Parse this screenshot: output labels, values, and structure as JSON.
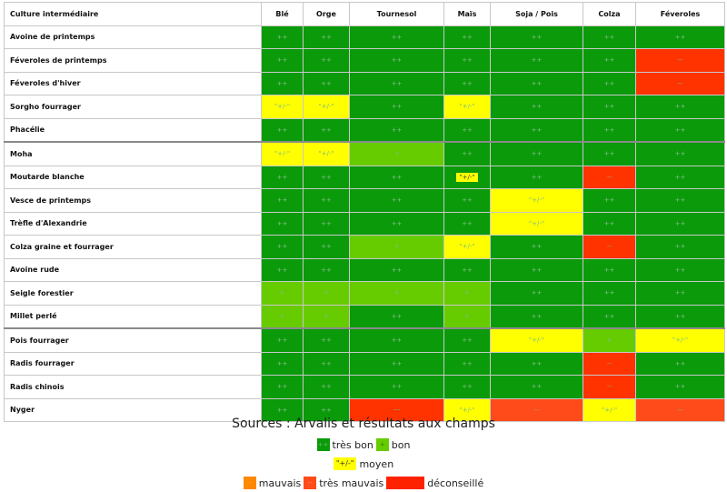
{
  "table": {
    "header_first": "Culture intermédiaire",
    "columns": [
      "Blé",
      "Orge",
      "Tournesol",
      "Maïs",
      "Soja / Pois",
      "Colza",
      "Féveroles"
    ],
    "rows": [
      {
        "crop": "Avoine de printemps",
        "values": [
          "++",
          "++",
          "++",
          "++",
          "++",
          "++",
          "++"
        ],
        "ratings": [
          "tb",
          "tb",
          "tb",
          "tb",
          "tb",
          "tb",
          "tb"
        ]
      },
      {
        "crop": "Féveroles de printemps",
        "values": [
          "++",
          "++",
          "++",
          "++",
          "++",
          "++",
          "--"
        ],
        "ratings": [
          "tb",
          "tb",
          "tb",
          "tb",
          "tb",
          "tb",
          "d"
        ]
      },
      {
        "crop": "Féveroles d'hiver",
        "values": [
          "++",
          "++",
          "++",
          "++",
          "++",
          "++",
          "--"
        ],
        "ratings": [
          "tb",
          "tb",
          "tb",
          "tb",
          "tb",
          "tb",
          "d"
        ]
      },
      {
        "crop": "Sorgho fourrager",
        "values": [
          "\"+/-\"",
          "\"+/-\"",
          "++",
          "\"+/-\"",
          "++",
          "++",
          "++"
        ],
        "ratings": [
          "m",
          "m",
          "tb",
          "m",
          "tb",
          "tb",
          "tb"
        ]
      },
      {
        "crop": "Phacélie",
        "values": [
          "++",
          "++",
          "++",
          "++",
          "++",
          "++",
          "++"
        ],
        "ratings": [
          "tb",
          "tb",
          "tb",
          "tb",
          "tb",
          "tb",
          "tb"
        ]
      },
      {
        "crop": "Moha",
        "values": [
          "\"+/-\"",
          "\"+/-\"",
          "+",
          "++",
          "++",
          "++",
          "++"
        ],
        "ratings": [
          "m",
          "m",
          "b",
          "tb",
          "tb",
          "tb",
          "tb"
        ]
      },
      {
        "crop": "Moutarde blanche",
        "values": [
          "++",
          "++",
          "++",
          "\"+/-\"",
          "++",
          "--",
          "++"
        ],
        "ratings": [
          "tb",
          "tb",
          "tb",
          "mp",
          "tb",
          "d",
          "tb"
        ]
      },
      {
        "crop": "Vesce de printemps",
        "values": [
          "++",
          "++",
          "++",
          "++",
          "\"+/-\"",
          "++",
          "++"
        ],
        "ratings": [
          "tb",
          "tb",
          "tb",
          "tb",
          "m",
          "tb",
          "tb"
        ]
      },
      {
        "crop": "Trèfle d'Alexandrie",
        "values": [
          "++",
          "++",
          "++",
          "++",
          "\"+/-\"",
          "++",
          "++"
        ],
        "ratings": [
          "tb",
          "tb",
          "tb",
          "tb",
          "m",
          "tb",
          "tb"
        ]
      },
      {
        "crop": "Colza graine et fourrager",
        "values": [
          "++",
          "++",
          "+",
          "\"+/-\"",
          "++",
          "--",
          "++"
        ],
        "ratings": [
          "tb",
          "tb",
          "b",
          "m",
          "tb",
          "d",
          "tb"
        ]
      },
      {
        "crop": "Avoine rude",
        "values": [
          "++",
          "++",
          "++",
          "++",
          "++",
          "++",
          "++"
        ],
        "ratings": [
          "tb",
          "tb",
          "tb",
          "tb",
          "tb",
          "tb",
          "tb"
        ]
      },
      {
        "crop": "Seigle forestier",
        "values": [
          "+",
          "+",
          "+",
          "+",
          "++",
          "++",
          "++"
        ],
        "ratings": [
          "b",
          "b",
          "b",
          "b",
          "tb",
          "tb",
          "tb"
        ]
      },
      {
        "crop": "Millet perlé",
        "values": [
          "+",
          "+",
          "++",
          "+",
          "++",
          "++",
          "++"
        ],
        "ratings": [
          "b",
          "b",
          "tb",
          "b",
          "tb",
          "tb",
          "tb"
        ]
      },
      {
        "crop": "Pois fourrager",
        "values": [
          "++",
          "++",
          "++",
          "++",
          "\"+/-\"",
          "+",
          "\"+/-\""
        ],
        "ratings": [
          "tb",
          "tb",
          "tb",
          "tb",
          "m",
          "b",
          "m"
        ]
      },
      {
        "crop": "Radis fourrager",
        "values": [
          "++",
          "++",
          "++",
          "++",
          "++",
          "--",
          "++"
        ],
        "ratings": [
          "tb",
          "tb",
          "tb",
          "tb",
          "tb",
          "d",
          "tb"
        ]
      },
      {
        "crop": "Radis chinois",
        "values": [
          "++",
          "++",
          "++",
          "++",
          "++",
          "--",
          "++"
        ],
        "ratings": [
          "tb",
          "tb",
          "tb",
          "tb",
          "tb",
          "d",
          "tb"
        ]
      },
      {
        "crop": "Nyger",
        "values": [
          "++",
          "++",
          "---",
          "\"+/-\"",
          "--",
          "\"+/-\"",
          "--"
        ],
        "ratings": [
          "tb",
          "tb",
          "d",
          "m",
          "tm",
          "m",
          "tm"
        ]
      }
    ],
    "group_starts": [
      5,
      13
    ]
  },
  "colors": {
    "tres_bon": "#0a9a0a",
    "bon": "#66cc00",
    "moyen": "#ffff00",
    "mauvais": "#ff8800",
    "tres_mauvais": "#ff4a1a",
    "deconseille": "#ff2200"
  },
  "legend": {
    "source": "Sources : Arvalis et résultats aux champs",
    "tres_bon_symbol": "++",
    "tres_bon_label": "très bon",
    "bon_symbol": "+",
    "bon_label": "bon",
    "moyen_symbol": "\"+/-\"",
    "moyen_label": "moyen",
    "mauvais_symbol": "-",
    "mauvais_label": "mauvais",
    "tres_mauvais_symbol": "--",
    "tres_mauvais_label": "très mauvais",
    "deconseille_symbol": "",
    "deconseille_label": "déconseillé"
  }
}
